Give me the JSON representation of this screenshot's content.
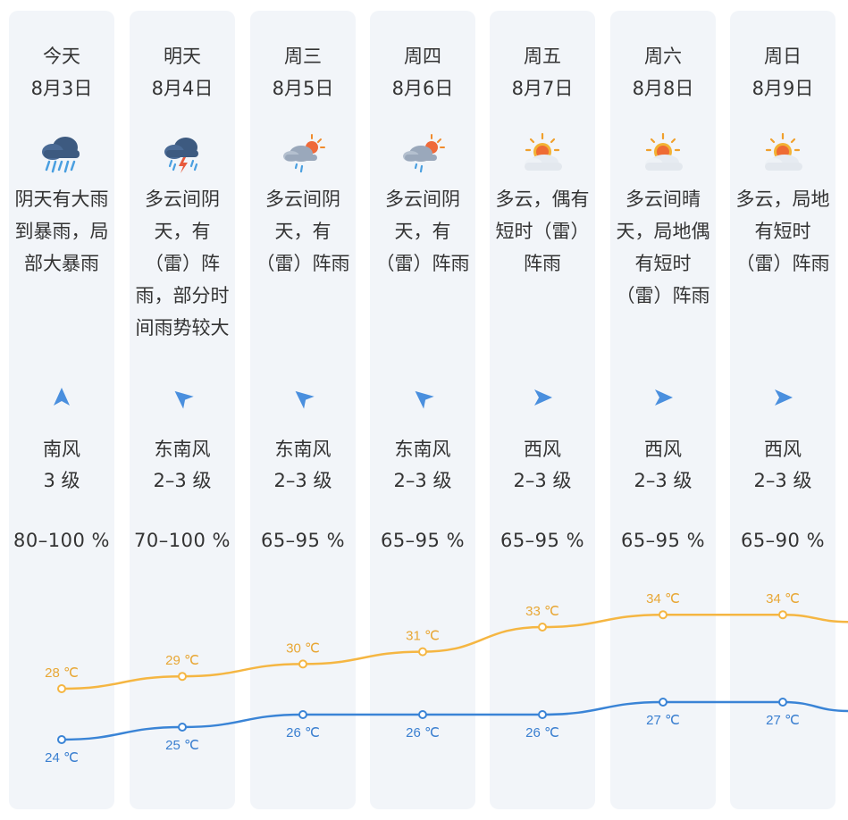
{
  "forecast": {
    "days": [
      {
        "day": "今天",
        "date": "8月3日",
        "icon": "heavy-rain-icon",
        "description": "阴天有大雨\n到暴雨，局\n部大暴雨",
        "wind_icon": "wind-arrow-north-icon",
        "wind_rotation_deg": 0,
        "wind_direction": "南风",
        "wind_level": "3 级",
        "humidity": "80–100 %",
        "high": 28,
        "high_label": "28 ℃",
        "low": 24,
        "low_label": "24 ℃"
      },
      {
        "day": "明天",
        "date": "8月4日",
        "icon": "thunderstorm-icon",
        "description": "多云间阴\n天，有\n（雷）阵\n雨，部分时\n间雨势较大",
        "wind_icon": "wind-arrow-northwest-icon",
        "wind_rotation_deg": -50,
        "wind_direction": "东南风",
        "wind_level": "2–3 级",
        "humidity": "70–100 %",
        "high": 29,
        "high_label": "29 ℃",
        "low": 25,
        "low_label": "25 ℃"
      },
      {
        "day": "周三",
        "date": "8月5日",
        "icon": "partly-cloudy-rain-icon",
        "description": "多云间阴\n天，有\n（雷）阵雨",
        "wind_icon": "wind-arrow-northwest-icon",
        "wind_rotation_deg": -50,
        "wind_direction": "东南风",
        "wind_level": "2–3 级",
        "humidity": "65–95 %",
        "high": 30,
        "high_label": "30 ℃",
        "low": 26,
        "low_label": "26 ℃"
      },
      {
        "day": "周四",
        "date": "8月6日",
        "icon": "partly-cloudy-rain-icon",
        "description": "多云间阴\n天，有\n（雷）阵雨",
        "wind_icon": "wind-arrow-northwest-icon",
        "wind_rotation_deg": -50,
        "wind_direction": "东南风",
        "wind_level": "2–3 级",
        "humidity": "65–95 %",
        "high": 31,
        "high_label": "31 ℃",
        "low": 26,
        "low_label": "26 ℃"
      },
      {
        "day": "周五",
        "date": "8月7日",
        "icon": "sun-cloud-icon",
        "description": "多云，偶有\n短时（雷）\n阵雨",
        "wind_icon": "wind-arrow-east-icon",
        "wind_rotation_deg": 90,
        "wind_direction": "西风",
        "wind_level": "2–3 级",
        "humidity": "65–95 %",
        "high": 33,
        "high_label": "33 ℃",
        "low": 26,
        "low_label": "26 ℃"
      },
      {
        "day": "周六",
        "date": "8月8日",
        "icon": "sun-cloud-icon",
        "description": "多云间晴\n天，局地偶\n有短时\n（雷）阵雨",
        "wind_icon": "wind-arrow-east-icon",
        "wind_rotation_deg": 90,
        "wind_direction": "西风",
        "wind_level": "2–3 级",
        "humidity": "65–95 %",
        "high": 34,
        "high_label": "34 ℃",
        "low": 27,
        "low_label": "27 ℃"
      },
      {
        "day": "周日",
        "date": "8月9日",
        "icon": "sun-cloud-icon",
        "description": "多云，局地\n有短时\n（雷）阵雨",
        "wind_icon": "wind-arrow-east-icon",
        "wind_rotation_deg": 90,
        "wind_direction": "西风",
        "wind_level": "2–3 级",
        "humidity": "65–90 %",
        "high": 34,
        "high_label": "34 ℃",
        "low": 27,
        "low_label": "27 ℃"
      }
    ],
    "colors": {
      "column_bg": "#f2f5f9",
      "text": "#333333",
      "high_line": "#f5b642",
      "high_label": "#e8a735",
      "low_line": "#3a84d6",
      "low_label": "#3a7fd0",
      "wind_arrow": "#4a8fde"
    }
  }
}
